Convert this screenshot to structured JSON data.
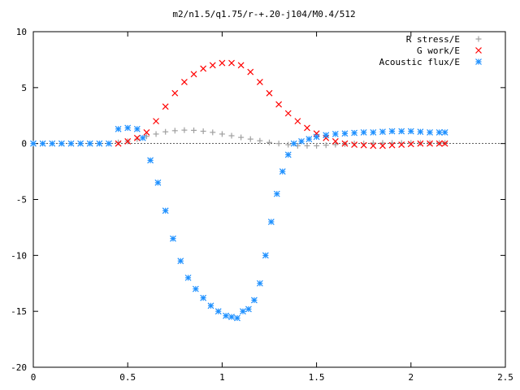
{
  "chart_data": {
    "type": "scatter",
    "title": "m2/n1.5/q1.75/r-+.20-j104/M0.4/512",
    "xlabel": "",
    "ylabel": "",
    "xlim": [
      0,
      2.5
    ],
    "ylim": [
      -20,
      10
    ],
    "x_ticks": [
      0,
      0.5,
      1,
      1.5,
      2,
      2.5
    ],
    "x_tick_labels": [
      "0",
      "0.5",
      "1",
      "1.5",
      "2",
      "2.5"
    ],
    "y_ticks": [
      10,
      5,
      0,
      -5,
      -10,
      -15,
      -20
    ],
    "y_tick_labels": [
      "10",
      "5",
      "0",
      "-5",
      "-10",
      "-15",
      "-20"
    ],
    "grid": false,
    "legend_position": "top-right",
    "series": [
      {
        "name": "R stress/E",
        "marker": "plus",
        "color": "#a0a0a0",
        "x": [
          0.45,
          0.5,
          0.55,
          0.6,
          0.65,
          0.7,
          0.75,
          0.8,
          0.85,
          0.9,
          0.95,
          1.0,
          1.05,
          1.1,
          1.15,
          1.2,
          1.25,
          1.3,
          1.35,
          1.4,
          1.45,
          1.5,
          1.55,
          1.6,
          1.65,
          1.7,
          1.75,
          1.8,
          1.85,
          1.9,
          1.95,
          2.0,
          2.05,
          2.1,
          2.15,
          2.18
        ],
        "y": [
          0.1,
          0.2,
          0.4,
          0.65,
          0.85,
          1.05,
          1.15,
          1.2,
          1.18,
          1.1,
          1.0,
          0.85,
          0.7,
          0.55,
          0.4,
          0.25,
          0.1,
          0.0,
          -0.1,
          -0.2,
          -0.2,
          -0.2,
          -0.15,
          -0.1,
          -0.05,
          0.0,
          0.0,
          0.05,
          0.05,
          0.05,
          0.05,
          0.05,
          0.05,
          0.05,
          0.05,
          0.05
        ]
      },
      {
        "name": "G work/E",
        "marker": "cross",
        "color": "#ff0000",
        "x": [
          0.45,
          0.5,
          0.55,
          0.6,
          0.65,
          0.7,
          0.75,
          0.8,
          0.85,
          0.9,
          0.95,
          1.0,
          1.05,
          1.1,
          1.15,
          1.2,
          1.25,
          1.3,
          1.35,
          1.4,
          1.45,
          1.5,
          1.55,
          1.6,
          1.65,
          1.7,
          1.75,
          1.8,
          1.85,
          1.9,
          1.95,
          2.0,
          2.05,
          2.1,
          2.15,
          2.18
        ],
        "y": [
          0.0,
          0.2,
          0.5,
          1.0,
          2.0,
          3.3,
          4.5,
          5.5,
          6.2,
          6.7,
          7.0,
          7.2,
          7.2,
          7.0,
          6.4,
          5.5,
          4.5,
          3.5,
          2.7,
          2.0,
          1.4,
          0.9,
          0.5,
          0.2,
          0.0,
          -0.1,
          -0.15,
          -0.2,
          -0.2,
          -0.15,
          -0.1,
          -0.05,
          0.0,
          0.0,
          0.0,
          0.0
        ]
      },
      {
        "name": "Acoustic flux/E",
        "marker": "star",
        "color": "#1e90ff",
        "x": [
          0.0,
          0.05,
          0.1,
          0.15,
          0.2,
          0.25,
          0.3,
          0.35,
          0.4,
          0.45,
          0.5,
          0.55,
          0.58,
          0.62,
          0.66,
          0.7,
          0.74,
          0.78,
          0.82,
          0.86,
          0.9,
          0.94,
          0.98,
          1.02,
          1.05,
          1.08,
          1.11,
          1.14,
          1.17,
          1.2,
          1.23,
          1.26,
          1.29,
          1.32,
          1.35,
          1.38,
          1.42,
          1.46,
          1.5,
          1.55,
          1.6,
          1.65,
          1.7,
          1.75,
          1.8,
          1.85,
          1.9,
          1.95,
          2.0,
          2.05,
          2.1,
          2.15,
          2.18
        ],
        "y": [
          0.0,
          0.0,
          0.0,
          0.0,
          0.0,
          0.0,
          0.0,
          0.0,
          0.0,
          1.3,
          1.4,
          1.3,
          0.5,
          -1.5,
          -3.5,
          -6.0,
          -8.5,
          -10.5,
          -12.0,
          -13.0,
          -13.8,
          -14.5,
          -15.0,
          -15.4,
          -15.5,
          -15.6,
          -15.0,
          -14.8,
          -14.0,
          -12.5,
          -10.0,
          -7.0,
          -4.5,
          -2.5,
          -1.0,
          0.0,
          0.2,
          0.4,
          0.6,
          0.75,
          0.85,
          0.9,
          0.95,
          1.0,
          1.0,
          1.05,
          1.1,
          1.1,
          1.1,
          1.05,
          1.0,
          1.0,
          1.0
        ]
      }
    ]
  }
}
